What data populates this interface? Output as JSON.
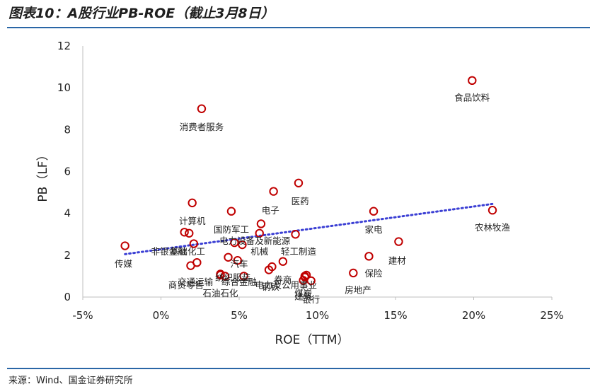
{
  "page": {
    "title": "图表10：A股行业PB-ROE（截止3月8日）",
    "source": "来源：Wind、国金证券研究所"
  },
  "colors": {
    "rule": "#2a66a6",
    "marker": "#c00000",
    "trendline": "#3b3fd4",
    "axis_text": "#222222"
  },
  "chart_data": {
    "type": "scatter",
    "title": "",
    "xlabel": "ROE（TTM）",
    "ylabel": "PB（LF）",
    "xlim": [
      -5,
      25
    ],
    "ylim": [
      0,
      12
    ],
    "x_ticks": [
      -5,
      0,
      5,
      10,
      15,
      20,
      25
    ],
    "x_tick_labels": [
      "-5%",
      "0%",
      "5%",
      "10%",
      "15%",
      "20%",
      "25%"
    ],
    "y_ticks": [
      0,
      2,
      4,
      6,
      8,
      10,
      12
    ],
    "y_tick_labels": [
      "0",
      "2",
      "4",
      "6",
      "8",
      "10",
      "12"
    ],
    "grid": false,
    "legend": "none",
    "trendline": {
      "style": "dotted",
      "x": [
        -2.3,
        21.2
      ],
      "y": [
        2.05,
        4.45
      ]
    },
    "points": [
      {
        "name": "食品饮料",
        "x": 19.9,
        "y": 10.35
      },
      {
        "name": "消费者服务",
        "x": 2.6,
        "y": 9.0
      },
      {
        "name": "医药",
        "x": 8.8,
        "y": 5.45
      },
      {
        "name": "电子",
        "x": 7.2,
        "y": 5.05
      },
      {
        "name": "计算机",
        "x": 2.0,
        "y": 4.5
      },
      {
        "name": "",
        "x": 4.5,
        "y": 4.1
      },
      {
        "name": "家电",
        "x": 13.6,
        "y": 4.1
      },
      {
        "name": "农林牧渔",
        "x": 21.2,
        "y": 4.15
      },
      {
        "name": "国防军工",
        "x": 6.4,
        "y": 3.5
      },
      {
        "name": "电力设备及新能源",
        "x": 6.3,
        "y": 3.05
      },
      {
        "name": "轻工制造",
        "x": 8.6,
        "y": 3.0
      },
      {
        "name": "",
        "x": 1.5,
        "y": 3.1
      },
      {
        "name": "",
        "x": 1.8,
        "y": 3.05
      },
      {
        "name": "基础化工",
        "x": 2.1,
        "y": 2.55
      },
      {
        "name": "机械",
        "x": 5.2,
        "y": 2.5
      },
      {
        "name": "",
        "x": 4.7,
        "y": 2.6
      },
      {
        "name": "建材",
        "x": 15.2,
        "y": 2.65
      },
      {
        "name": "传媒",
        "x": -2.3,
        "y": 2.45
      },
      {
        "name": "保险",
        "x": 13.3,
        "y": 1.95
      },
      {
        "name": "汽车",
        "x": 4.3,
        "y": 1.9
      },
      {
        "name": "",
        "x": 4.9,
        "y": 1.75
      },
      {
        "name": "",
        "x": 7.8,
        "y": 1.7
      },
      {
        "name": "",
        "x": 2.3,
        "y": 1.65
      },
      {
        "name": "商贸零售",
        "x": 1.9,
        "y": 1.5
      },
      {
        "name": "纺织服装",
        "x": 3.8,
        "y": 1.05
      },
      {
        "name": "交通运输",
        "x": 3.8,
        "y": 1.1
      },
      {
        "name": "综合金融",
        "x": 5.3,
        "y": 1.0
      },
      {
        "name": "钢铁",
        "x": 7.1,
        "y": 1.45
      },
      {
        "name": "",
        "x": 6.9,
        "y": 1.3
      },
      {
        "name": "电力及公用事业",
        "x": 9.2,
        "y": 1.0
      },
      {
        "name": "",
        "x": 9.2,
        "y": 0.95
      },
      {
        "name": "建筑",
        "x": 9.1,
        "y": 0.8
      },
      {
        "name": "煤炭",
        "x": 9.3,
        "y": 1.05
      },
      {
        "name": "银行",
        "x": 9.6,
        "y": 0.78
      },
      {
        "name": "房地产",
        "x": 12.3,
        "y": 1.15
      },
      {
        "name": "石油石化",
        "x": 4.1,
        "y": 1.0
      }
    ],
    "annotations": [
      {
        "text": "食品饮料",
        "x": 19.9,
        "y": 9.55
      },
      {
        "text": "消费者服务",
        "x": 2.6,
        "y": 8.15
      },
      {
        "text": "医药",
        "x": 8.9,
        "y": 4.6
      },
      {
        "text": "电子",
        "x": 7.0,
        "y": 4.15
      },
      {
        "text": "计算机",
        "x": 2.0,
        "y": 3.65
      },
      {
        "text": "家电",
        "x": 13.6,
        "y": 3.25
      },
      {
        "text": "农林牧渔",
        "x": 21.2,
        "y": 3.35
      },
      {
        "text": "国防军工",
        "x": 4.5,
        "y": 3.25
      },
      {
        "text": "电力设备及新能源",
        "x": 6.0,
        "y": 2.7
      },
      {
        "text": "非银金融",
        "x": 0.5,
        "y": 2.2
      },
      {
        "text": "基础化工",
        "x": 1.7,
        "y": 2.2
      },
      {
        "text": "机械",
        "x": 6.3,
        "y": 2.2
      },
      {
        "text": "轻工制造",
        "x": 8.8,
        "y": 2.2
      },
      {
        "text": "建材",
        "x": 15.1,
        "y": 1.75
      },
      {
        "text": "传媒",
        "x": -2.4,
        "y": 1.6
      },
      {
        "text": "汽车",
        "x": 5.0,
        "y": 1.6
      },
      {
        "text": "保险",
        "x": 13.6,
        "y": 1.15
      },
      {
        "text": "纺织服装",
        "x": 4.6,
        "y": 0.95
      },
      {
        "text": "交通运输",
        "x": 2.2,
        "y": 0.75
      },
      {
        "text": "综合金融",
        "x": 5.0,
        "y": 0.75
      },
      {
        "text": "券商",
        "x": 7.8,
        "y": 0.85
      },
      {
        "text": "商贸零售",
        "x": 1.6,
        "y": 0.6
      },
      {
        "text": "电力及公用事业",
        "x": 8.0,
        "y": 0.6
      },
      {
        "text": "钢铁",
        "x": 7.0,
        "y": 0.5
      },
      {
        "text": "房地产",
        "x": 12.6,
        "y": 0.35
      },
      {
        "text": "石油石化",
        "x": 3.8,
        "y": 0.2
      },
      {
        "text": "煤炭",
        "x": 9.1,
        "y": 0.2
      },
      {
        "text": "建筑",
        "x": 9.1,
        "y": 0.05
      },
      {
        "text": "银行",
        "x": 9.6,
        "y": -0.1
      }
    ]
  }
}
